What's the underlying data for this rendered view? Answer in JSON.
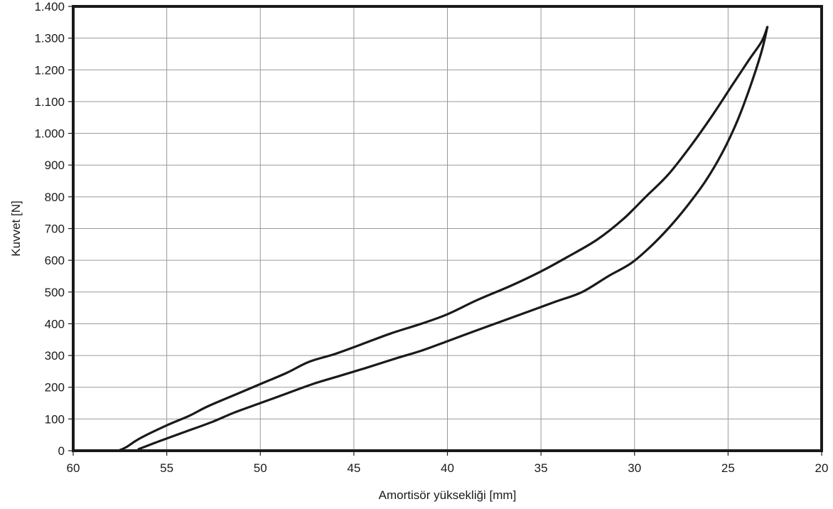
{
  "chart_data": {
    "type": "line",
    "title": "",
    "xlabel": "Amortisör yüksekliği [mm]",
    "ylabel": "Kuvvet [N]",
    "xlim": [
      60,
      20
    ],
    "ylim": [
      0,
      1400
    ],
    "x_reversed": true,
    "grid": true,
    "x_ticks": [
      60,
      55,
      50,
      45,
      40,
      35,
      30,
      25,
      20
    ],
    "x_tick_labels": [
      "60",
      "55",
      "50",
      "45",
      "40",
      "35",
      "30",
      "25",
      "20"
    ],
    "y_ticks": [
      0,
      100,
      200,
      300,
      400,
      500,
      600,
      700,
      800,
      900,
      1000,
      1100,
      1200,
      1300,
      1400
    ],
    "y_tick_labels": [
      "0",
      "100",
      "200",
      "300",
      "400",
      "500",
      "600",
      "700",
      "800",
      "900",
      "1.000",
      "1.100",
      "1.200",
      "1.300",
      "1.400"
    ],
    "line_color": "#1a1a1a",
    "series": [
      {
        "x": [
          57.6,
          57.2,
          56.4,
          55.0,
          53.8,
          52.8,
          51.2,
          50.0,
          48.6,
          47.4,
          46.0,
          44.6,
          43.0,
          41.4,
          40.0,
          38.4,
          36.6,
          35.0,
          33.6,
          32.0,
          30.6,
          29.4,
          28.2,
          27.0,
          25.8,
          24.8,
          23.9,
          23.2,
          22.9
        ],
        "y": [
          0,
          10,
          40,
          80,
          110,
          140,
          180,
          210,
          245,
          280,
          305,
          335,
          370,
          400,
          430,
          475,
          520,
          565,
          610,
          665,
          730,
          800,
          870,
          960,
          1060,
          1150,
          1230,
          1290,
          1335
        ]
      },
      {
        "x": [
          22.9,
          23.2,
          23.8,
          24.5,
          25.3,
          26.2,
          27.2,
          28.2,
          29.2,
          30.2,
          31.4,
          32.8,
          34.2,
          35.6,
          37.0,
          38.4,
          40.0,
          41.4,
          42.8,
          44.4,
          45.8,
          47.2,
          48.6,
          50.0,
          51.4,
          52.6,
          54.0,
          55.4,
          56.5
        ],
        "y": [
          1335,
          1260,
          1150,
          1040,
          940,
          850,
          770,
          700,
          640,
          590,
          550,
          500,
          470,
          440,
          410,
          380,
          345,
          315,
          290,
          260,
          235,
          210,
          180,
          150,
          120,
          90,
          60,
          30,
          5
        ]
      }
    ]
  }
}
